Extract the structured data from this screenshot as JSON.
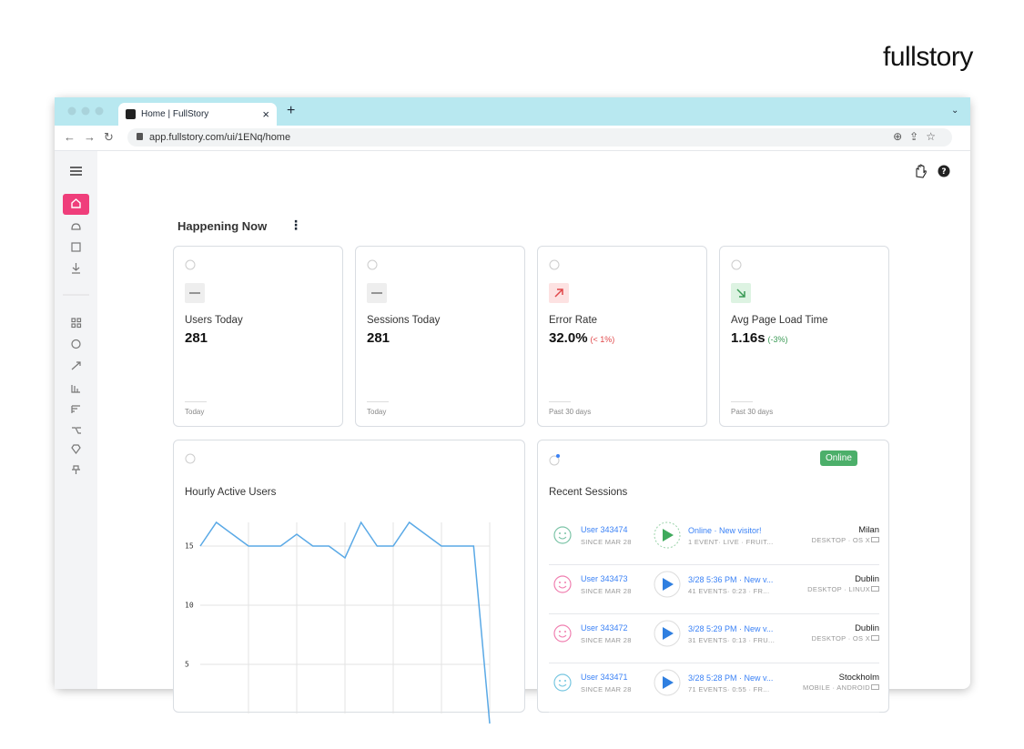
{
  "logo": "fullstory",
  "browser": {
    "tab_title": "Home | FullStory",
    "url": "app.fullstory.com/ui/1ENq/home"
  },
  "section_title": "Happening Now",
  "metrics": [
    {
      "label": "Users Today",
      "value": "281",
      "period": "Today"
    },
    {
      "label": "Sessions Today",
      "value": "281",
      "period": "Today"
    },
    {
      "label": "Error Rate",
      "value": "32.0%",
      "change": "(< 1%)",
      "period": "Past 30 days"
    },
    {
      "label": "Avg Page Load Time",
      "value": "1.16s",
      "change": "(-3%)",
      "period": "Past 30 days"
    }
  ],
  "recent_sessions": {
    "title": "Recent Sessions",
    "status": "Online",
    "sessions": [
      {
        "user": "User 343474",
        "since": "SINCE MAR 28",
        "summary": "Online · New visitor!",
        "details": "1 EVENT· LIVE · FRUIT...",
        "city": "Milan",
        "device": "DESKTOP · OS X"
      },
      {
        "user": "User 343473",
        "since": "SINCE MAR 28",
        "summary": "3/28 5:36 PM · New v...",
        "details": "41 EVENTS· 0:23 · FR...",
        "city": "Dublin",
        "device": "DESKTOP · LINUX"
      },
      {
        "user": "User 343472",
        "since": "SINCE MAR 28",
        "summary": "3/28 5:29 PM · New v...",
        "details": "31 EVENTS· 0:13 · FRU...",
        "city": "Dublin",
        "device": "DESKTOP · OS X"
      },
      {
        "user": "User 343471",
        "since": "SINCE MAR 28",
        "summary": "3/28 5:28 PM · New v...",
        "details": "71 EVENTS· 0:55 · FR...",
        "city": "Stockholm",
        "device": "MOBILE · ANDROID"
      }
    ]
  },
  "chart_data": {
    "type": "line",
    "title": "Hourly Active Users",
    "values": [
      15,
      17,
      16,
      15,
      15,
      15,
      16,
      15,
      15,
      14,
      17,
      15,
      15,
      17,
      16,
      15,
      15,
      15,
      0
    ],
    "ylim": [
      0,
      17
    ],
    "yticks": [
      5,
      10,
      15
    ],
    "grid": true,
    "color": "#5aa9e6"
  }
}
